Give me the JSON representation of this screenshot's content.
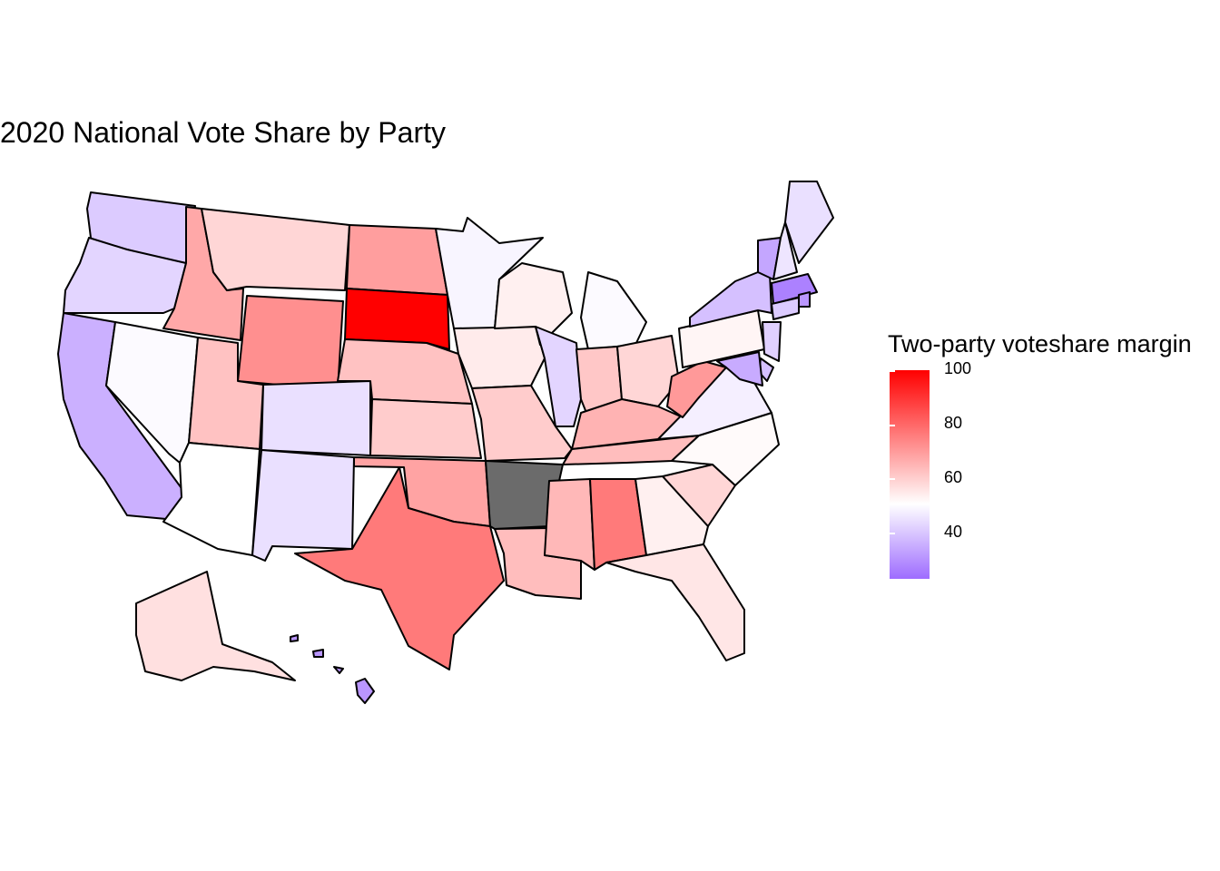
{
  "title": "2020 National Vote Share by Party",
  "legend": {
    "title": "Two-party voteshare margin",
    "ticks": [
      "100",
      "80",
      "60",
      "40"
    ],
    "range": [
      22,
      100
    ],
    "colors": {
      "low": "#9e6cff",
      "mid": "#ffffff",
      "high": "#ff0000",
      "missing": "#6b6b6b"
    }
  },
  "states": [
    {
      "name": "Washington",
      "value": 40
    },
    {
      "name": "Oregon",
      "value": 42
    },
    {
      "name": "California",
      "value": 35
    },
    {
      "name": "Nevada",
      "value": 49
    },
    {
      "name": "Idaho",
      "value": 67
    },
    {
      "name": "Montana",
      "value": 58
    },
    {
      "name": "Wyoming",
      "value": 72
    },
    {
      "name": "Utah",
      "value": 62
    },
    {
      "name": "Arizona",
      "value": 50
    },
    {
      "name": "Colorado",
      "value": 44
    },
    {
      "name": "New Mexico",
      "value": 44
    },
    {
      "name": "North Dakota",
      "value": 69
    },
    {
      "name": "South Dakota",
      "value": 100
    },
    {
      "name": "Nebraska",
      "value": 62
    },
    {
      "name": "Kansas",
      "value": 60
    },
    {
      "name": "Oklahoma",
      "value": 68
    },
    {
      "name": "Texas",
      "value": 76
    },
    {
      "name": "Minnesota",
      "value": 48
    },
    {
      "name": "Iowa",
      "value": 54
    },
    {
      "name": "Missouri",
      "value": 60
    },
    {
      "name": "Arkansas",
      "value": null
    },
    {
      "name": "Louisiana",
      "value": 63
    },
    {
      "name": "Wisconsin",
      "value": 53
    },
    {
      "name": "Illinois",
      "value": 42
    },
    {
      "name": "Michigan",
      "value": 49
    },
    {
      "name": "Indiana",
      "value": 61
    },
    {
      "name": "Ohio",
      "value": 58
    },
    {
      "name": "Kentucky",
      "value": 65
    },
    {
      "name": "Tennessee",
      "value": 63
    },
    {
      "name": "Mississippi",
      "value": 64
    },
    {
      "name": "Alabama",
      "value": 76
    },
    {
      "name": "Georgia",
      "value": 53
    },
    {
      "name": "Florida",
      "value": 55
    },
    {
      "name": "South Carolina",
      "value": 58
    },
    {
      "name": "North Carolina",
      "value": 51
    },
    {
      "name": "Virginia",
      "value": 47
    },
    {
      "name": "West Virginia",
      "value": 70
    },
    {
      "name": "Pennsylvania",
      "value": 52
    },
    {
      "name": "New York",
      "value": 38
    },
    {
      "name": "Vermont",
      "value": 33
    },
    {
      "name": "New Hampshire",
      "value": 45
    },
    {
      "name": "Maine",
      "value": 44
    },
    {
      "name": "Massachusetts",
      "value": 26
    },
    {
      "name": "Rhode Island",
      "value": 30
    },
    {
      "name": "Connecticut",
      "value": 40
    },
    {
      "name": "New Jersey",
      "value": 41
    },
    {
      "name": "Delaware",
      "value": 38
    },
    {
      "name": "Maryland",
      "value": 34
    },
    {
      "name": "Alaska",
      "value": 56
    },
    {
      "name": "Hawaii",
      "value": 30
    }
  ]
}
